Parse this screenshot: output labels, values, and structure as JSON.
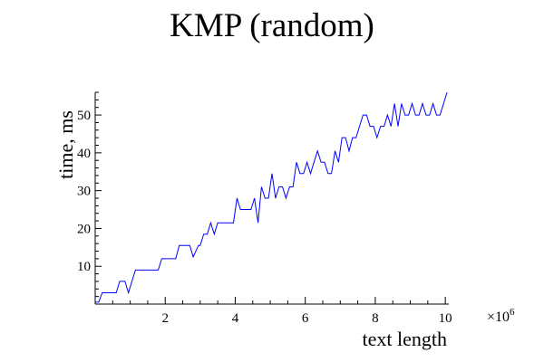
{
  "chart_data": {
    "type": "line",
    "title": "KMP (random)",
    "xlabel": "text length",
    "ylabel": "time, ms",
    "x_scale_label": "×10",
    "x_scale_exp": "6",
    "xlim": [
      0,
      10.1
    ],
    "ylim": [
      0,
      56
    ],
    "x_ticks": [
      2,
      4,
      6,
      8,
      10
    ],
    "y_ticks": [
      10,
      20,
      30,
      40,
      50
    ],
    "grid": false,
    "series": [
      {
        "color": "#0000ff",
        "points": [
          [
            0.0,
            0.5
          ],
          [
            0.1,
            0.5
          ],
          [
            0.2,
            3
          ],
          [
            0.4,
            3
          ],
          [
            0.6,
            3
          ],
          [
            0.7,
            6
          ],
          [
            0.85,
            6
          ],
          [
            0.95,
            3
          ],
          [
            1.05,
            6
          ],
          [
            1.15,
            9
          ],
          [
            1.4,
            9
          ],
          [
            1.6,
            9
          ],
          [
            1.8,
            9
          ],
          [
            1.9,
            12
          ],
          [
            2.1,
            12
          ],
          [
            2.3,
            12
          ],
          [
            2.4,
            15.5
          ],
          [
            2.6,
            15.5
          ],
          [
            2.7,
            15.5
          ],
          [
            2.8,
            12.5
          ],
          [
            2.95,
            15.5
          ],
          [
            3.0,
            15.5
          ],
          [
            3.1,
            18.5
          ],
          [
            3.2,
            18.5
          ],
          [
            3.3,
            21.5
          ],
          [
            3.4,
            18.5
          ],
          [
            3.5,
            21.5
          ],
          [
            3.6,
            21.5
          ],
          [
            3.8,
            21.5
          ],
          [
            3.95,
            21.5
          ],
          [
            4.05,
            28
          ],
          [
            4.15,
            25
          ],
          [
            4.3,
            25
          ],
          [
            4.45,
            25
          ],
          [
            4.55,
            28
          ],
          [
            4.65,
            21.5
          ],
          [
            4.75,
            31
          ],
          [
            4.85,
            28
          ],
          [
            4.95,
            28
          ],
          [
            5.05,
            34.5
          ],
          [
            5.15,
            28
          ],
          [
            5.25,
            31
          ],
          [
            5.35,
            31
          ],
          [
            5.45,
            28
          ],
          [
            5.55,
            31
          ],
          [
            5.65,
            31
          ],
          [
            5.75,
            37.5
          ],
          [
            5.85,
            34.5
          ],
          [
            5.95,
            34.5
          ],
          [
            6.05,
            37.5
          ],
          [
            6.15,
            34.5
          ],
          [
            6.25,
            37.5
          ],
          [
            6.35,
            40.5
          ],
          [
            6.45,
            37.5
          ],
          [
            6.55,
            37.5
          ],
          [
            6.65,
            34.5
          ],
          [
            6.75,
            34.5
          ],
          [
            6.85,
            40.5
          ],
          [
            6.95,
            37.5
          ],
          [
            7.05,
            44
          ],
          [
            7.15,
            44
          ],
          [
            7.25,
            40.5
          ],
          [
            7.35,
            44
          ],
          [
            7.45,
            44
          ],
          [
            7.55,
            47
          ],
          [
            7.65,
            50
          ],
          [
            7.75,
            50
          ],
          [
            7.85,
            47
          ],
          [
            7.95,
            47
          ],
          [
            8.05,
            44
          ],
          [
            8.15,
            47
          ],
          [
            8.25,
            47
          ],
          [
            8.35,
            50
          ],
          [
            8.45,
            47
          ],
          [
            8.55,
            53
          ],
          [
            8.65,
            47
          ],
          [
            8.75,
            53
          ],
          [
            8.85,
            50
          ],
          [
            8.95,
            50
          ],
          [
            9.05,
            53
          ],
          [
            9.15,
            50
          ],
          [
            9.25,
            50
          ],
          [
            9.35,
            53
          ],
          [
            9.45,
            50
          ],
          [
            9.55,
            50
          ],
          [
            9.65,
            53
          ],
          [
            9.75,
            50
          ],
          [
            9.85,
            50
          ],
          [
            9.95,
            53
          ],
          [
            10.05,
            56
          ]
        ]
      }
    ]
  }
}
